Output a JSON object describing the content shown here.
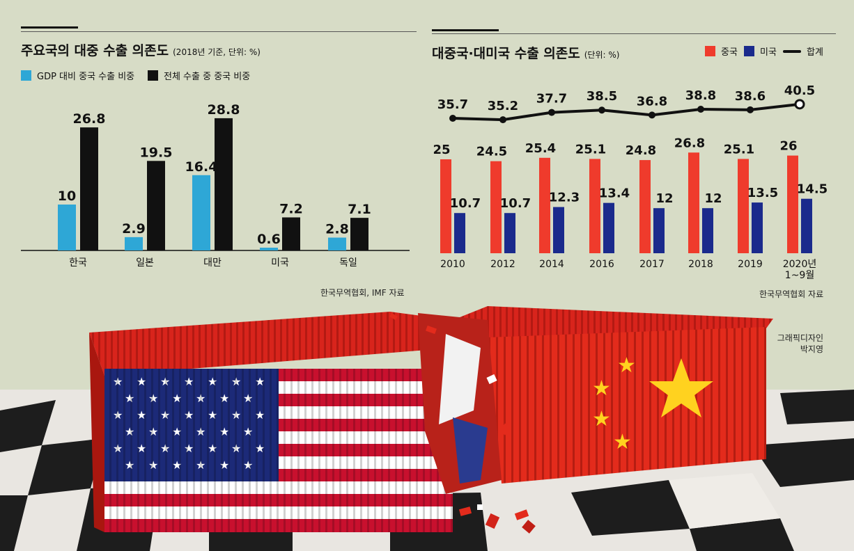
{
  "chart_data": [
    {
      "type": "bar",
      "title": "주요국의 대중 수출 의존도",
      "unit_note": "(2018년 기준, 단위: %)",
      "categories": [
        "한국",
        "일본",
        "대만",
        "미국",
        "독일"
      ],
      "series": [
        {
          "name": "GDP 대비 중국 수출 비중",
          "color": "#2ea7d6",
          "values": [
            10,
            2.9,
            16.4,
            0.6,
            2.8
          ],
          "labels": [
            "10",
            "2.9",
            "16.4",
            "0.6",
            "2.8"
          ]
        },
        {
          "name": "전체 수출 중 중국 비중",
          "color": "#111111",
          "values": [
            26.8,
            19.5,
            28.8,
            7.2,
            7.1
          ],
          "labels": [
            "26.8",
            "19.5",
            "28.8",
            "7.2",
            "7.1"
          ]
        }
      ],
      "ylim": [
        0,
        30
      ],
      "source": "한국무역협회, IMF 자료"
    },
    {
      "type": "bar",
      "title": "대중국·대미국 수출 의존도",
      "unit_note": "(단위: %)",
      "categories": [
        "2010",
        "2012",
        "2014",
        "2016",
        "2017",
        "2018",
        "2019",
        "2020년 1~9월"
      ],
      "category_lines": [
        [
          "2010"
        ],
        [
          "2012"
        ],
        [
          "2014"
        ],
        [
          "2016"
        ],
        [
          "2017"
        ],
        [
          "2018"
        ],
        [
          "2019"
        ],
        [
          "2020년",
          "1~9월"
        ]
      ],
      "series": [
        {
          "name": "중국",
          "color": "#ef3b2c",
          "values": [
            25,
            24.5,
            25.4,
            25.1,
            24.8,
            26.8,
            25.1,
            26
          ],
          "labels": [
            "25",
            "24.5",
            "25.4",
            "25.1",
            "24.8",
            "26.8",
            "25.1",
            "26"
          ]
        },
        {
          "name": "미국",
          "color": "#1a2a8c",
          "values": [
            10.7,
            10.7,
            12.3,
            13.4,
            12,
            12,
            13.5,
            14.5
          ],
          "labels": [
            "10.7",
            "10.7",
            "12.3",
            "13.4",
            "12",
            "12",
            "13.5",
            "14.5"
          ]
        }
      ],
      "line": {
        "name": "합계",
        "values": [
          35.7,
          35.2,
          37.7,
          38.5,
          36.8,
          38.8,
          38.6,
          40.5
        ],
        "labels": [
          "35.7",
          "35.2",
          "37.7",
          "38.5",
          "36.8",
          "38.8",
          "38.6",
          "40.5"
        ]
      },
      "source": "한국무역협회 자료"
    }
  ],
  "credit": {
    "line1": "그래픽디자인",
    "line2": "박지영"
  },
  "colors": {
    "background": "#d7dcc6",
    "usa_red": "#c8102e",
    "usa_blue": "#1c2a78",
    "china_red": "#e32b1c",
    "china_star": "#ffd21f"
  }
}
